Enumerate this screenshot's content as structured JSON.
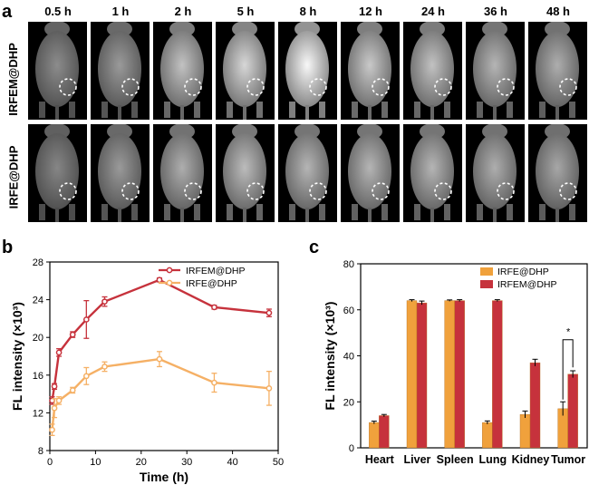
{
  "panels": {
    "a": "a",
    "b": "b",
    "c": "c"
  },
  "imaging": {
    "timepoints": [
      "0.5 h",
      "1 h",
      "2 h",
      "5 h",
      "8 h",
      "12 h",
      "24 h",
      "36 h",
      "48 h"
    ],
    "rows": [
      "IRFEM@DHP",
      "IRFE@DHP"
    ]
  },
  "chart_data": [
    {
      "type": "line",
      "xlabel": "Time (h)",
      "ylabel": "FL intensity (×10³)",
      "xlim": [
        0,
        50
      ],
      "ylim": [
        8,
        28
      ],
      "xticks": [
        0,
        10,
        20,
        30,
        40,
        50
      ],
      "yticks": [
        8,
        12,
        16,
        20,
        24,
        28
      ],
      "legend_position": "top-right",
      "series": [
        {
          "name": "IRFEM@DHP",
          "color": "#c6323c",
          "x": [
            0.5,
            1,
            2,
            5,
            8,
            12,
            24,
            36,
            48
          ],
          "y": [
            13.3,
            14.8,
            18.4,
            20.3,
            21.9,
            23.8,
            26.1,
            23.2,
            22.6
          ],
          "err": [
            0.4,
            0.3,
            0.4,
            0.3,
            2.0,
            0.5,
            0.2,
            0.2,
            0.4
          ]
        },
        {
          "name": "IRFE@DHP",
          "color": "#f5b065",
          "x": [
            0.5,
            1,
            2,
            5,
            8,
            12,
            24,
            36,
            48
          ],
          "y": [
            10.2,
            12.5,
            13.3,
            14.4,
            15.9,
            16.9,
            17.7,
            15.2,
            14.6
          ],
          "err": [
            0.6,
            1.0,
            0.4,
            0.3,
            0.9,
            0.5,
            0.8,
            1.0,
            1.8
          ]
        }
      ]
    },
    {
      "type": "bar",
      "ylabel": "FL intensity (×10³)",
      "ylim": [
        0,
        80
      ],
      "yticks": [
        0,
        20,
        40,
        60,
        80
      ],
      "categories": [
        "Heart",
        "Liver",
        "Spleen",
        "Lung",
        "Kidney",
        "Tumor"
      ],
      "legend_position": "top-right",
      "series": [
        {
          "name": "IRFE@DHP",
          "color": "#f0a13c",
          "values": [
            11,
            64,
            64,
            11,
            14.5,
            17
          ],
          "err": [
            0.6,
            0.4,
            0.3,
            0.7,
            1.5,
            3.0
          ]
        },
        {
          "name": "IRFEM@DHP",
          "color": "#c6323c",
          "values": [
            14,
            63,
            64,
            64,
            37,
            32
          ],
          "err": [
            0.5,
            0.8,
            0.4,
            0.4,
            1.5,
            1.5
          ]
        }
      ],
      "annotations": [
        "*"
      ]
    }
  ]
}
